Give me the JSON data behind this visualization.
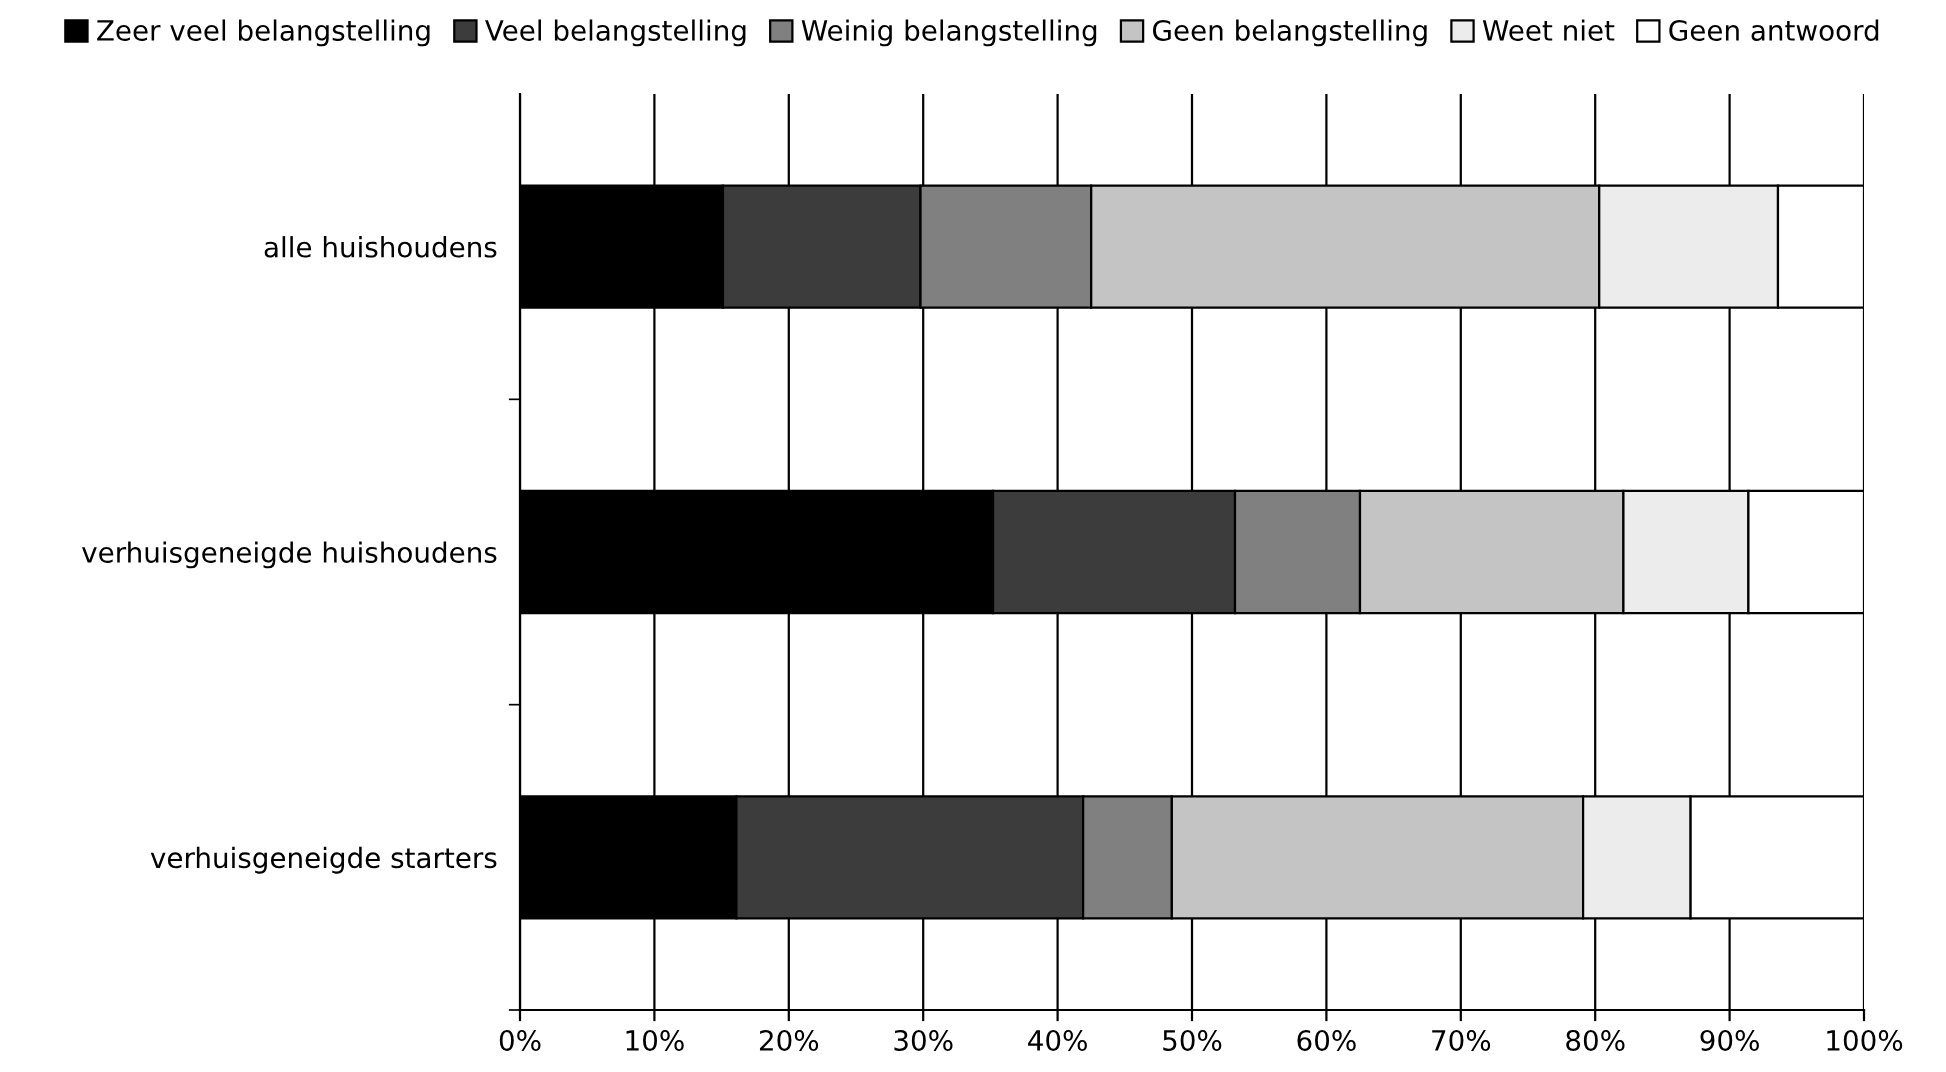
{
  "chart_data": {
    "type": "bar",
    "orientation": "horizontal",
    "stacked": true,
    "categories": [
      "alle huishoudens",
      "verhuisgeneigde huishoudens",
      "verhuisgeneigde starters"
    ],
    "series": [
      {
        "name": "Zeer veel belangstelling",
        "color": "#000000",
        "values": [
          15.1,
          35.2,
          16.1
        ]
      },
      {
        "name": "Veel belangstelling",
        "color": "#3c3c3c",
        "values": [
          14.7,
          18.0,
          25.8
        ]
      },
      {
        "name": "Weinig belangstelling",
        "color": "#808080",
        "values": [
          12.7,
          9.3,
          6.6
        ]
      },
      {
        "name": "Geen belangstelling",
        "color": "#c4c4c4",
        "values": [
          37.8,
          19.6,
          30.6
        ]
      },
      {
        "name": "Weet niet",
        "color": "#ececec",
        "values": [
          13.3,
          9.3,
          8.0
        ]
      },
      {
        "name": "Geen antwoord",
        "color": "#ffffff",
        "values": [
          6.4,
          8.6,
          12.9
        ]
      }
    ],
    "xlim": [
      0,
      100
    ],
    "xticks": [
      {
        "value": 0,
        "label": "0%"
      },
      {
        "value": 10,
        "label": "10%"
      },
      {
        "value": 20,
        "label": "20%"
      },
      {
        "value": 30,
        "label": "30%"
      },
      {
        "value": 40,
        "label": "40%"
      },
      {
        "value": 50,
        "label": "50%"
      },
      {
        "value": 60,
        "label": "60%"
      },
      {
        "value": 70,
        "label": "70%"
      },
      {
        "value": 80,
        "label": "80%"
      },
      {
        "value": 90,
        "label": "90%"
      },
      {
        "value": 100,
        "label": "100%"
      }
    ],
    "grid": "x",
    "legend": "top"
  }
}
